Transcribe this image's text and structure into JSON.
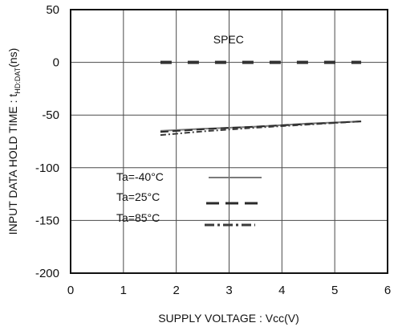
{
  "chart_data": {
    "type": "line",
    "xlabel": "SUPPLY VOLTAGE : Vcc(V)",
    "ylabel": {
      "main": "INPUT DATA HOLD TIME : t",
      "subscript": "HD:DAT",
      "unit": "(ns)"
    },
    "xlim": [
      0,
      6
    ],
    "ylim": [
      -200,
      50
    ],
    "xticks": [
      "0",
      "1",
      "2",
      "3",
      "4",
      "5",
      "6"
    ],
    "yticks": [
      "50",
      "0",
      "-50",
      "-100",
      "-150",
      "-200"
    ],
    "x_tick_values": [
      0,
      1,
      2,
      3,
      4,
      5,
      6
    ],
    "y_tick_values": [
      50,
      0,
      -50,
      -100,
      -150,
      -200
    ],
    "grid": true,
    "annotation": {
      "text": "SPEC",
      "x": 2.7,
      "y": 18
    },
    "spec": {
      "x": [
        1.7,
        5.5
      ],
      "y": [
        0,
        0
      ]
    },
    "series": [
      {
        "name": "Ta=-40°C",
        "x": [
          1.7,
          2.5,
          3.5,
          4.5,
          5.5
        ],
        "y": [
          -65,
          -63,
          -61,
          -58,
          -56
        ]
      },
      {
        "name": "Ta=25°C",
        "x": [
          1.7,
          2.5,
          3.5,
          4.5,
          5.5
        ],
        "y": [
          -66,
          -63.5,
          -61,
          -58.5,
          -56
        ]
      },
      {
        "name": "Ta=85°C",
        "x": [
          1.7,
          2.5,
          3.5,
          4.5,
          5.5
        ],
        "y": [
          -69,
          -65.5,
          -62,
          -59,
          -56
        ]
      }
    ],
    "legend_position": "lower-left"
  },
  "colors": {
    "frame": "#111111",
    "grid": "#4a4a4a",
    "spec": "#333333",
    "series": [
      "#7a7a7a",
      "#2a2a2a",
      "#3a3a3a"
    ]
  }
}
